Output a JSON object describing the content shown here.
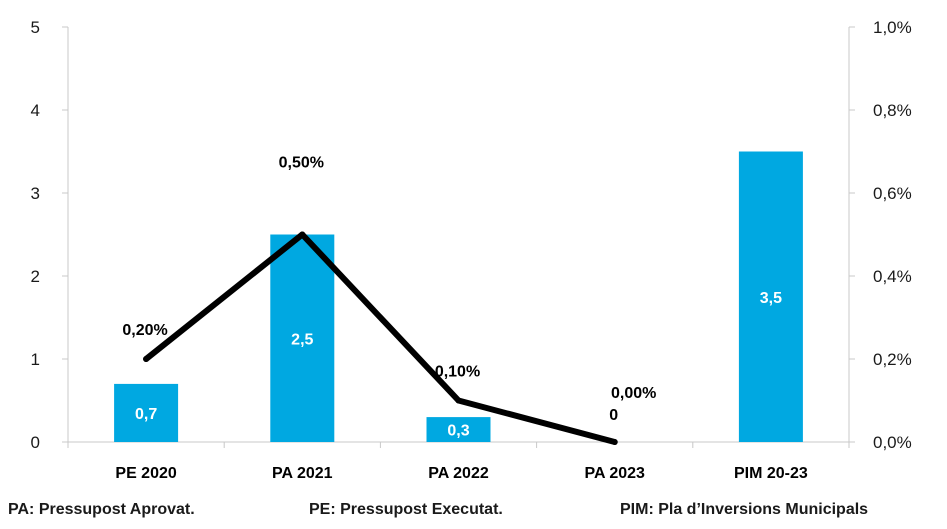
{
  "chart_data": {
    "type": "bar",
    "categories": [
      "PE 2020",
      "PA 2021",
      "PA 2022",
      "PA 2023",
      "PIM 20-23"
    ],
    "bar_series": {
      "values": [
        0.7,
        2.5,
        0.3,
        0,
        3.5
      ],
      "labels": [
        "0,7",
        "2,5",
        "0,3",
        "0",
        "3,5"
      ],
      "color": "#00a8e1"
    },
    "line_series": {
      "values": [
        0.002,
        0.005,
        0.001,
        0.0
      ],
      "labels": [
        "0,20%",
        "0,50%",
        "0,10%",
        "0,00%"
      ],
      "color": "#000000"
    },
    "y_left": {
      "ylim": [
        0,
        5
      ],
      "ticks": [
        "0",
        "1",
        "2",
        "3",
        "4",
        "5"
      ]
    },
    "y_right": {
      "ylim": [
        0,
        0.01
      ],
      "ticks": [
        "0,0%",
        "0,2%",
        "0,4%",
        "0,6%",
        "0,8%",
        "1,0%"
      ]
    },
    "grid": false
  },
  "footnotes": [
    "PA: Pressupost Aprovat.",
    "PE: Pressupost Executat.",
    "PIM: Pla d’Inversions Municipals"
  ]
}
